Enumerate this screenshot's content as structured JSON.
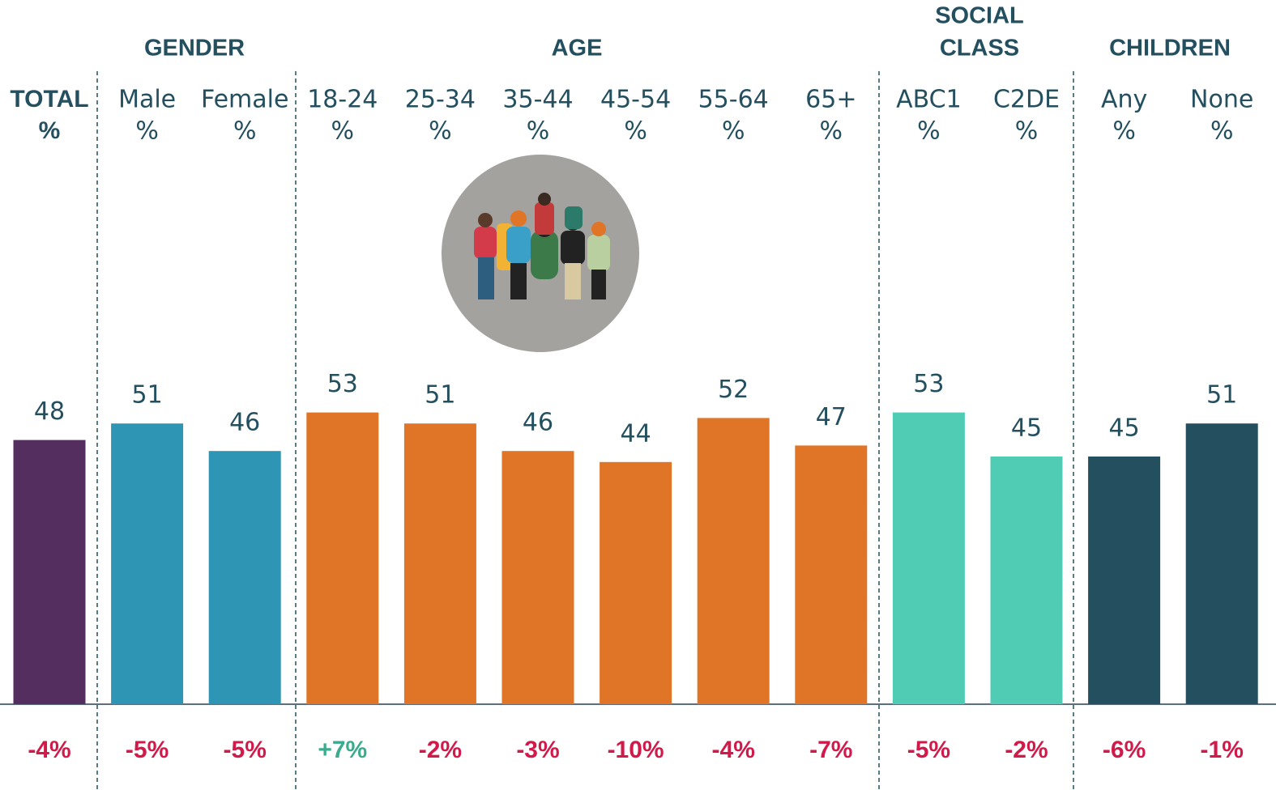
{
  "chart_data": {
    "type": "bar",
    "groups": [
      [
        "GENDER"
      ],
      [
        "AGE"
      ],
      [
        "SOCIAL",
        "CLASS"
      ],
      [
        "CHILDREN"
      ]
    ],
    "categories": [
      [
        "TOTAL",
        "%"
      ],
      [
        "Male",
        "%"
      ],
      [
        "Female",
        "%"
      ],
      [
        "18-24",
        "%"
      ],
      [
        "25-34",
        "%"
      ],
      [
        "35-44",
        "%"
      ],
      [
        "45-54",
        "%"
      ],
      [
        "55-64",
        "%"
      ],
      [
        "65+",
        "%"
      ],
      [
        "ABC1",
        "%"
      ],
      [
        "C2DE",
        "%"
      ],
      [
        "Any",
        "%"
      ],
      [
        "None",
        "%"
      ]
    ],
    "values": [
      48,
      51,
      46,
      53,
      51,
      46,
      44,
      52,
      47,
      53,
      45,
      45,
      51
    ],
    "colors": [
      "#542e5e",
      "#2f95b5",
      "#2f95b5",
      "#e07427",
      "#e07427",
      "#e07427",
      "#e07427",
      "#e07427",
      "#e07427",
      "#50cbb4",
      "#50cbb4",
      "#234f5f",
      "#234f5f"
    ],
    "changes": {
      "values": [
        -4,
        -5,
        -5,
        7,
        -2,
        -3,
        -10,
        -4,
        -7,
        -5,
        -2,
        -6,
        -1
      ],
      "value_labels": [
        "-4%",
        "-5%",
        "-5%",
        "+7%",
        "-2%",
        "-3%",
        "-10%",
        "-4%",
        "-7%",
        "-5%",
        "-2%",
        "-6%",
        "-1%"
      ],
      "positive_color": "#3aab8c",
      "negative_color": "#d11a4a"
    }
  }
}
